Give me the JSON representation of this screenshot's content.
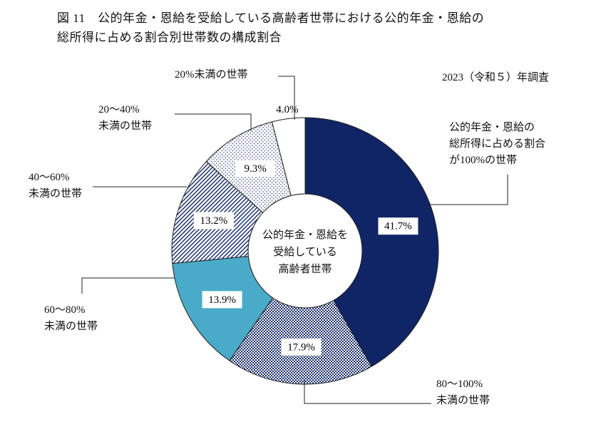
{
  "chart_data": {
    "type": "pie",
    "title": "図 11　公的年金・恩給を受給している高齢者世帯における公的年金・恩給の\n総所得に占める割合別世帯数の構成割合",
    "subtitle": "2023（令和５）年調査",
    "center_label": "公的年金・恩給を\n受給している\n高齢者世帯",
    "categories": [
      "公的年金・恩給の\n総所得に占める割合\nが100%の世帯",
      "80～100%\n未満の世帯",
      "60～80%\n未満の世帯",
      "40～60%\n未満の世帯",
      "20～40%\n未満の世帯",
      "20%未満の世帯"
    ],
    "values": [
      41.7,
      17.9,
      13.9,
      13.2,
      9.3,
      4.0
    ],
    "value_labels": [
      "41.7%",
      "17.9%",
      "13.9%",
      "13.2%",
      "9.3%",
      "4.0%"
    ],
    "colors": [
      "#0f2566",
      "#1a2f6e",
      "#4aabc8",
      "#2a3f78",
      "#2a3f78",
      "#ffffff"
    ],
    "patterns": [
      "solid",
      "checker",
      "solid",
      "hatch",
      "dots",
      "solid"
    ]
  }
}
